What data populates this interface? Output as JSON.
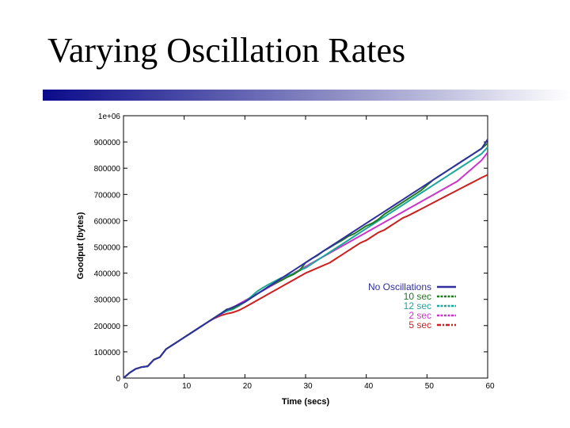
{
  "slide": {
    "title": "Varying Oscillation Rates"
  },
  "colors": {
    "bar_start": "#0a0a8a",
    "bar_end": "#ffffff"
  },
  "chart_data": {
    "type": "line",
    "title": "",
    "xlabel": "Time (secs)",
    "ylabel": "Goodput (bytes)",
    "xlim": [
      0,
      60
    ],
    "ylim": [
      0,
      1000000
    ],
    "xticks": [
      0,
      10,
      20,
      30,
      40,
      50,
      60
    ],
    "yticks": [
      0,
      100000,
      200000,
      300000,
      400000,
      500000,
      600000,
      700000,
      800000,
      900000,
      1000000
    ],
    "ytick_labels": [
      "0",
      "100000",
      "200000",
      "300000",
      "400000",
      "500000",
      "600000",
      "700000",
      "800000",
      "900000",
      "1e+06"
    ],
    "grid": false,
    "legend_position": "right",
    "series": [
      {
        "name": "No Oscillations",
        "color": "#2f2f9e",
        "dash": "solid",
        "x": [
          0,
          1,
          2,
          3,
          4,
          5,
          6,
          7,
          8,
          9,
          10,
          11,
          12,
          13,
          14,
          15,
          16,
          17,
          18,
          19,
          20,
          21,
          22,
          23,
          24,
          25,
          26,
          27,
          28,
          29,
          30,
          31,
          32,
          33,
          34,
          35,
          36,
          37,
          38,
          39,
          40,
          41,
          42,
          43,
          44,
          45,
          46,
          47,
          48,
          49,
          50,
          51,
          52,
          53,
          54,
          55,
          56,
          57,
          58,
          59,
          60
        ],
        "y": [
          0,
          20000,
          35000,
          42000,
          45000,
          70000,
          80000,
          110000,
          125000,
          140000,
          155000,
          170000,
          185000,
          200000,
          215000,
          230000,
          245000,
          260000,
          270000,
          280000,
          290000,
          305000,
          320000,
          335000,
          350000,
          365000,
          380000,
          395000,
          410000,
          425000,
          440000,
          455000,
          470000,
          485000,
          500000,
          515000,
          530000,
          545000,
          560000,
          575000,
          590000,
          605000,
          620000,
          635000,
          650000,
          665000,
          680000,
          695000,
          710000,
          725000,
          740000,
          755000,
          770000,
          785000,
          800000,
          815000,
          830000,
          845000,
          860000,
          875000,
          910000
        ]
      },
      {
        "name": "10 sec",
        "color": "#1f7a1f",
        "dash": "dashed",
        "x": [
          0,
          1,
          2,
          3,
          4,
          5,
          6,
          7,
          8,
          9,
          10,
          11,
          12,
          13,
          14,
          15,
          16,
          17,
          18,
          19,
          20,
          21,
          22,
          23,
          24,
          25,
          26,
          27,
          28,
          29,
          30,
          31,
          32,
          33,
          34,
          35,
          36,
          37,
          38,
          39,
          40,
          41,
          42,
          43,
          44,
          45,
          46,
          47,
          48,
          49,
          50,
          51,
          52,
          53,
          54,
          55,
          56,
          57,
          58,
          59,
          60
        ],
        "y": [
          0,
          20000,
          35000,
          42000,
          45000,
          70000,
          80000,
          110000,
          125000,
          140000,
          155000,
          170000,
          185000,
          200000,
          215000,
          230000,
          245000,
          262000,
          265000,
          278000,
          290000,
          305000,
          320000,
          335000,
          350000,
          362000,
          372000,
          385000,
          395000,
          410000,
          440000,
          455000,
          468000,
          485000,
          498000,
          512000,
          525000,
          540000,
          550000,
          565000,
          580000,
          590000,
          605000,
          625000,
          640000,
          655000,
          670000,
          685000,
          700000,
          715000,
          735000,
          755000,
          770000,
          785000,
          800000,
          815000,
          830000,
          845000,
          860000,
          875000,
          895000
        ]
      },
      {
        "name": "12 sec",
        "color": "#1aa89a",
        "dash": "dashed",
        "x": [
          0,
          1,
          2,
          3,
          4,
          5,
          6,
          7,
          8,
          9,
          10,
          11,
          12,
          13,
          14,
          15,
          16,
          17,
          18,
          19,
          20,
          21,
          22,
          23,
          24,
          25,
          26,
          27,
          28,
          29,
          30,
          31,
          32,
          33,
          34,
          35,
          36,
          37,
          38,
          39,
          40,
          41,
          42,
          43,
          44,
          45,
          46,
          47,
          48,
          49,
          50,
          51,
          52,
          53,
          54,
          55,
          56,
          57,
          58,
          59,
          60
        ],
        "y": [
          0,
          20000,
          35000,
          42000,
          45000,
          70000,
          80000,
          110000,
          125000,
          140000,
          155000,
          170000,
          185000,
          200000,
          215000,
          230000,
          245000,
          255000,
          262000,
          275000,
          290000,
          310000,
          330000,
          345000,
          358000,
          370000,
          382000,
          390000,
          398000,
          410000,
          420000,
          435000,
          450000,
          465000,
          480000,
          495000,
          510000,
          525000,
          540000,
          555000,
          570000,
          585000,
          600000,
          615000,
          630000,
          645000,
          660000,
          675000,
          690000,
          705000,
          720000,
          735000,
          750000,
          765000,
          780000,
          795000,
          810000,
          825000,
          840000,
          855000,
          880000
        ]
      },
      {
        "name": "2 sec",
        "color": "#cc33cc",
        "dash": "dashed",
        "x": [
          0,
          1,
          2,
          3,
          4,
          5,
          6,
          7,
          8,
          9,
          10,
          11,
          12,
          13,
          14,
          15,
          16,
          17,
          18,
          19,
          20,
          21,
          22,
          23,
          24,
          25,
          26,
          27,
          28,
          29,
          30,
          31,
          32,
          33,
          34,
          35,
          36,
          37,
          38,
          39,
          40,
          41,
          42,
          43,
          44,
          45,
          46,
          47,
          48,
          49,
          50,
          51,
          52,
          53,
          54,
          55,
          56,
          57,
          58,
          59,
          60
        ],
        "y": [
          0,
          20000,
          35000,
          42000,
          45000,
          70000,
          80000,
          110000,
          125000,
          140000,
          155000,
          170000,
          185000,
          200000,
          215000,
          230000,
          243000,
          256000,
          269000,
          282000,
          295000,
          308000,
          321000,
          334000,
          347000,
          360000,
          373000,
          386000,
          399000,
          412000,
          425000,
          438000,
          451000,
          464000,
          477000,
          490000,
          503000,
          516000,
          529000,
          542000,
          555000,
          568000,
          581000,
          594000,
          607000,
          620000,
          633000,
          646000,
          659000,
          672000,
          685000,
          698000,
          711000,
          724000,
          737000,
          750000,
          770000,
          790000,
          810000,
          830000,
          860000
        ]
      },
      {
        "name": "5 sec",
        "color": "#cc1f1f",
        "dash": "dashdot",
        "x": [
          0,
          1,
          2,
          3,
          4,
          5,
          6,
          7,
          8,
          9,
          10,
          11,
          12,
          13,
          14,
          15,
          16,
          17,
          18,
          19,
          20,
          21,
          22,
          23,
          24,
          25,
          26,
          27,
          28,
          29,
          30,
          31,
          32,
          33,
          34,
          35,
          36,
          37,
          38,
          39,
          40,
          41,
          42,
          43,
          44,
          45,
          46,
          47,
          48,
          49,
          50,
          51,
          52,
          53,
          54,
          55,
          56,
          57,
          58,
          59,
          60
        ],
        "y": [
          0,
          20000,
          35000,
          42000,
          45000,
          70000,
          80000,
          110000,
          125000,
          140000,
          155000,
          170000,
          185000,
          200000,
          215000,
          228000,
          238000,
          245000,
          250000,
          258000,
          270000,
          283000,
          296000,
          309000,
          322000,
          335000,
          348000,
          361000,
          374000,
          387000,
          400000,
          410000,
          420000,
          430000,
          440000,
          455000,
          470000,
          485000,
          500000,
          515000,
          525000,
          540000,
          555000,
          565000,
          580000,
          595000,
          610000,
          620000,
          632000,
          644000,
          656000,
          668000,
          680000,
          692000,
          704000,
          716000,
          728000,
          740000,
          752000,
          764000,
          775000
        ]
      }
    ]
  }
}
